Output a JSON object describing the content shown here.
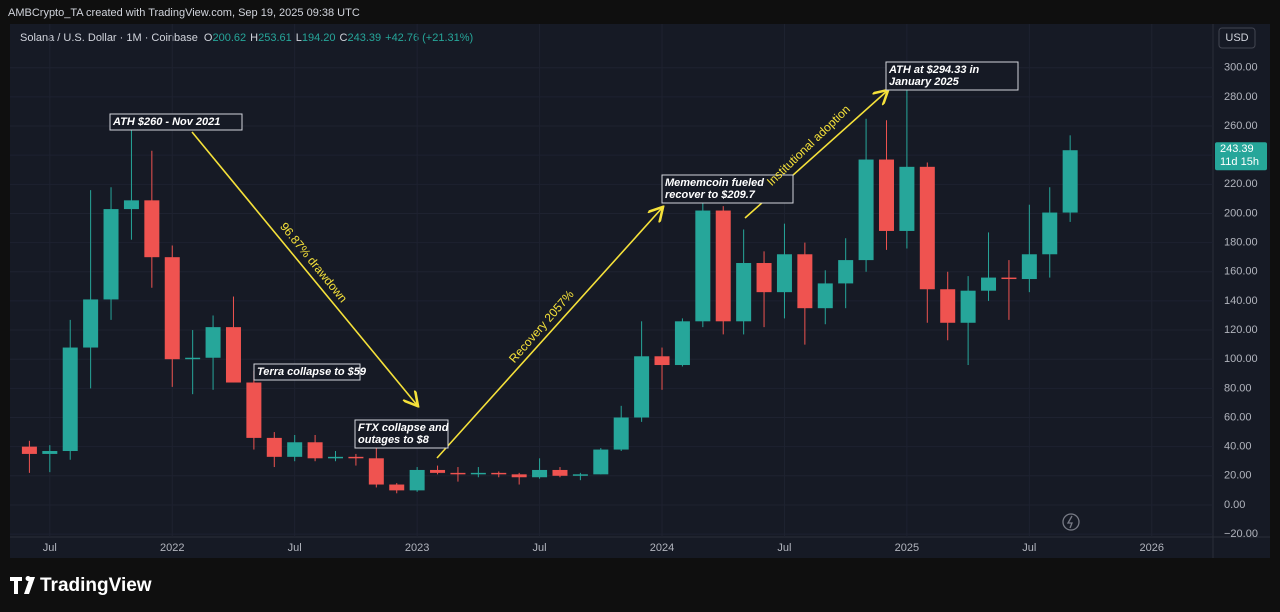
{
  "header": "AMBCrypto_TA created with TradingView.com, Sep 19, 2025 09:38 UTC",
  "footer": {
    "brand": "TradingView"
  },
  "chart_data": {
    "type": "candlestick",
    "title": "Solana / U.S. Dollar · 1M · Coinbase",
    "legend": [
      {
        "key": "O",
        "value": "200.62"
      },
      {
        "key": "H",
        "value": "253.61"
      },
      {
        "key": "L",
        "value": "194.20"
      },
      {
        "key": "C",
        "value": "243.39"
      }
    ],
    "change": "+42.76 (+21.31%)",
    "currency": "USD",
    "countdown": "11d 15h",
    "up_color": "#26a69a",
    "down_color": "#ef5350",
    "grid": true,
    "x": [
      "2021-06",
      "2021-07",
      "2021-08",
      "2021-09",
      "2021-10",
      "2021-11",
      "2021-12",
      "2022-01",
      "2022-02",
      "2022-03",
      "2022-04",
      "2022-05",
      "2022-06",
      "2022-07",
      "2022-08",
      "2022-09",
      "2022-10",
      "2022-11",
      "2022-12",
      "2023-01",
      "2023-02",
      "2023-03",
      "2023-04",
      "2023-05",
      "2023-06",
      "2023-07",
      "2023-08",
      "2023-09",
      "2023-10",
      "2023-11",
      "2023-12",
      "2024-01",
      "2024-02",
      "2024-03",
      "2024-04",
      "2024-05",
      "2024-06",
      "2024-07",
      "2024-08",
      "2024-09",
      "2024-10",
      "2024-11",
      "2024-12",
      "2025-01",
      "2025-02",
      "2025-03",
      "2025-04",
      "2025-05",
      "2025-06",
      "2025-07",
      "2025-08",
      "2025-09"
    ],
    "open": [
      40,
      35,
      37,
      108,
      141,
      203,
      209,
      170,
      100,
      101,
      122,
      84,
      46,
      33,
      43,
      32,
      33,
      32,
      14,
      10,
      24,
      22,
      21,
      22,
      21,
      19,
      24,
      20,
      21,
      38,
      60,
      102,
      96,
      126,
      202,
      126,
      166,
      146,
      172,
      135,
      152,
      168,
      237,
      188,
      232,
      148,
      125,
      147,
      156,
      155,
      172,
      200.62
    ],
    "high": [
      44,
      41,
      127,
      216,
      218,
      260,
      243,
      178,
      120,
      130,
      143,
      92,
      50,
      48,
      48,
      37,
      35,
      40,
      15,
      26,
      27,
      26,
      26,
      23,
      22,
      32,
      26,
      22,
      39,
      68,
      126,
      108,
      128,
      210,
      205,
      189,
      174,
      193,
      180,
      161,
      183,
      265,
      264,
      294.33,
      235,
      160,
      157,
      187,
      168,
      206,
      218,
      253.61
    ],
    "low": [
      22,
      22.5,
      31,
      80,
      127,
      182,
      149,
      81,
      76,
      79,
      84,
      38,
      26,
      30,
      30,
      30,
      27,
      12,
      8,
      9,
      21,
      16,
      19,
      19,
      14,
      18,
      19,
      17,
      21,
      37,
      57,
      79,
      95,
      122,
      117,
      117,
      122,
      128,
      110,
      124,
      135,
      160,
      175,
      176,
      125,
      113,
      96,
      140,
      127,
      146,
      156,
      194.2
    ],
    "close": [
      35,
      37,
      108,
      141,
      203,
      209,
      170,
      100,
      101,
      122,
      84,
      46,
      33,
      43,
      32,
      33,
      32,
      14,
      10,
      24,
      22,
      21,
      22,
      21,
      19,
      24,
      20,
      21,
      38,
      60,
      102,
      96,
      126,
      202,
      126,
      166,
      146,
      172,
      135,
      152,
      168,
      237,
      188,
      232,
      148,
      125,
      147,
      156,
      155,
      172,
      200.62,
      243.39
    ],
    "xlim": [
      "2021-05",
      "2026-04"
    ],
    "xticks": [
      {
        "value": "2021-07",
        "label": "Jul"
      },
      {
        "value": "2022-01",
        "label": "2022"
      },
      {
        "value": "2022-07",
        "label": "Jul"
      },
      {
        "value": "2023-01",
        "label": "2023"
      },
      {
        "value": "2023-07",
        "label": "Jul"
      },
      {
        "value": "2024-01",
        "label": "2024"
      },
      {
        "value": "2024-07",
        "label": "Jul"
      },
      {
        "value": "2025-01",
        "label": "2025"
      },
      {
        "value": "2025-07",
        "label": "Jul"
      },
      {
        "value": "2026-01",
        "label": "2026"
      }
    ],
    "ylim": [
      -22,
      330
    ],
    "yticks": [
      {
        "value": -20,
        "label": "−20.00"
      },
      {
        "value": 0,
        "label": "0.00"
      },
      {
        "value": 20,
        "label": "20.00"
      },
      {
        "value": 40,
        "label": "40.00"
      },
      {
        "value": 60,
        "label": "60.00"
      },
      {
        "value": 80,
        "label": "80.00"
      },
      {
        "value": 100,
        "label": "100.00"
      },
      {
        "value": 120,
        "label": "120.00"
      },
      {
        "value": 140,
        "label": "140.00"
      },
      {
        "value": 160,
        "label": "160.00"
      },
      {
        "value": 180,
        "label": "180.00"
      },
      {
        "value": 200,
        "label": "200.00"
      },
      {
        "value": 220,
        "label": "220.00"
      },
      {
        "value": 240,
        "label": "240.00"
      },
      {
        "value": 260,
        "label": "260.00"
      },
      {
        "value": 280,
        "label": "280.00"
      },
      {
        "value": 300,
        "label": "300.00"
      }
    ],
    "annotations": [
      {
        "lines": [
          "ATH $260 - Nov 2021"
        ]
      },
      {
        "lines": [
          "96.87% drawdown"
        ]
      },
      {
        "lines": [
          "Terra collapse to $59"
        ]
      },
      {
        "lines": [
          "FTX collapse and",
          "outages to $8"
        ]
      },
      {
        "lines": [
          "Recovery 2057%"
        ]
      },
      {
        "lines": [
          "Mememcoin fueled",
          "recover to $209.7"
        ]
      },
      {
        "lines": [
          "Institutional adoption"
        ]
      },
      {
        "lines": [
          "ATH at $294.33 in",
          "January 2025"
        ]
      }
    ]
  }
}
